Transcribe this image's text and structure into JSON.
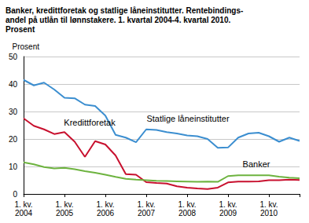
{
  "chart_data": {
    "type": "line",
    "title": "Banker, kredittforetak og statlige låneinstitutter. Rentebindings-\nandel på utlån til lønnstakere. 1. kvartal 2004-4. kvartal 2010.\nProsent",
    "y_label": "Prosent",
    "categories": [
      "1. kv.\n2004",
      null,
      null,
      null,
      "1. kv.\n2005",
      null,
      null,
      null,
      "1. kv.\n2006",
      null,
      null,
      null,
      "1. kv.\n2007",
      null,
      null,
      null,
      "1. kv.\n2008",
      null,
      null,
      null,
      "1. kv.\n2009",
      null,
      null,
      null,
      "1. kv.\n2010",
      null,
      null,
      null
    ],
    "series": [
      {
        "name": "Statlige låneinstitutter",
        "color": "#3b8ed0",
        "values": [
          41.5,
          39.5,
          40.5,
          38,
          35,
          34.8,
          32.5,
          32,
          28.5,
          21.5,
          20.5,
          18.8,
          23.5,
          23.3,
          22.5,
          22,
          21.3,
          21,
          20,
          16.8,
          16.9,
          20.5,
          22,
          22.3,
          21,
          19,
          20.5,
          19.3
        ]
      },
      {
        "name": "Kredittforetak",
        "color": "#c8102e",
        "values": [
          27.5,
          24.8,
          23.5,
          21.8,
          22.5,
          19,
          13.5,
          19.2,
          18,
          14,
          7.2,
          7,
          4.3,
          4,
          3.8,
          2.8,
          2.3,
          2,
          1.8,
          2.3,
          4.2,
          4.5,
          4.5,
          4.6,
          5,
          5,
          5.2,
          5.1
        ]
      },
      {
        "name": "Banker",
        "color": "#6db33f",
        "values": [
          11.5,
          10.8,
          9.8,
          9.3,
          9.5,
          9,
          8.3,
          7.7,
          7,
          6.2,
          5.5,
          5.2,
          5,
          4.8,
          4.7,
          4.6,
          4.5,
          4.4,
          4.5,
          4.4,
          6.5,
          6.8,
          6.8,
          6.8,
          6.8,
          6.3,
          5.9,
          5.7
        ]
      }
    ],
    "ylim": [
      0,
      50
    ],
    "yticks": [
      0,
      10,
      20,
      30,
      40,
      50
    ],
    "grid": true
  }
}
